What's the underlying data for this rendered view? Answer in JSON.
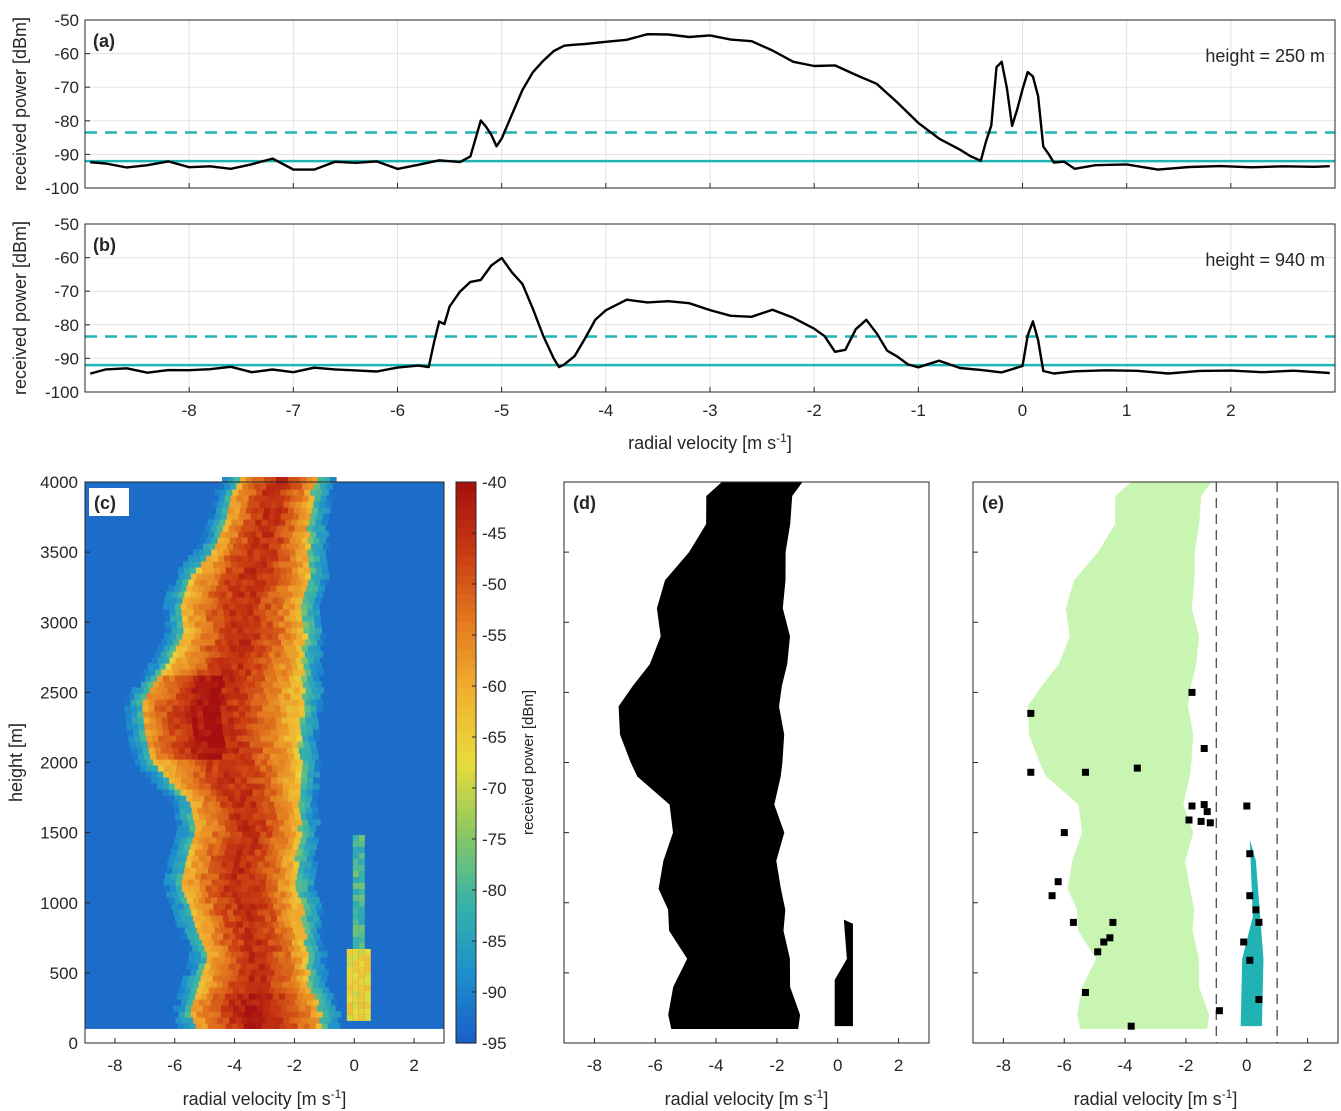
{
  "chart_data": [
    {
      "id": "a",
      "type": "line",
      "panel_label": "(a)",
      "annotation": "height = 250 m",
      "xlabel": "radial velocity [m s",
      "xlabel_sup": "-1",
      "xlabel_tail": "]",
      "ylabel": "received power [dBm]",
      "xlim": [
        -9,
        3
      ],
      "ylim": [
        -100,
        -50
      ],
      "xticks": [
        -8,
        -7,
        -6,
        -5,
        -4,
        -3,
        -2,
        -1,
        0,
        1,
        2
      ],
      "yticks": [
        -50,
        -60,
        -70,
        -80,
        -90,
        -100
      ],
      "show_xticklabels": false,
      "show_xlabel": false,
      "grid": true,
      "threshold_dashed": -83.5,
      "threshold_solid": -92,
      "x": [
        -8.95,
        -8.8,
        -8.6,
        -8.4,
        -8.2,
        -8.0,
        -7.8,
        -7.6,
        -7.4,
        -7.2,
        -7.0,
        -6.8,
        -6.6,
        -6.4,
        -6.2,
        -6.0,
        -5.8,
        -5.6,
        -5.4,
        -5.3,
        -5.2,
        -5.15,
        -5.1,
        -5.05,
        -5.0,
        -4.9,
        -4.8,
        -4.7,
        -4.6,
        -4.5,
        -4.4,
        -4.3,
        -4.2,
        -4.0,
        -3.8,
        -3.6,
        -3.4,
        -3.2,
        -3.0,
        -2.8,
        -2.6,
        -2.4,
        -2.2,
        -2.0,
        -1.8,
        -1.6,
        -1.4,
        -1.2,
        -1.0,
        -0.8,
        -0.6,
        -0.5,
        -0.4,
        -0.35,
        -0.3,
        -0.25,
        -0.2,
        -0.15,
        -0.1,
        -0.05,
        0.0,
        0.05,
        0.1,
        0.15,
        0.2,
        0.25,
        0.3,
        0.4,
        0.5,
        0.7,
        1.0,
        1.3,
        1.6,
        1.9,
        2.2,
        2.5,
        2.8,
        2.95
      ],
      "values": [
        -93,
        -92,
        -94,
        -93,
        -92,
        -94,
        -93,
        -94,
        -93,
        -92,
        -95,
        -94,
        -93,
        -93,
        -92,
        -95,
        -93,
        -92,
        -92,
        -91,
        -80,
        -82,
        -84,
        -87,
        -85,
        -78,
        -70,
        -65,
        -62,
        -60,
        -58,
        -57,
        -57,
        -56,
        -56,
        -55,
        -55,
        -55,
        -55,
        -56,
        -57,
        -59,
        -62,
        -64,
        -64,
        -66,
        -69,
        -74,
        -80,
        -85,
        -88,
        -91,
        -92,
        -86,
        -82,
        -64,
        -62,
        -70,
        -81,
        -76,
        -70,
        -66,
        -66,
        -72,
        -87,
        -90,
        -92,
        -92,
        -94,
        -93,
        -93,
        -94,
        -93,
        -93,
        -94,
        -93,
        -94,
        -93
      ]
    },
    {
      "id": "b",
      "type": "line",
      "panel_label": "(b)",
      "annotation": "height = 940 m",
      "xlabel": "radial velocity [m s",
      "xlabel_sup": "-1",
      "xlabel_tail": "]",
      "ylabel": "received power [dBm]",
      "xlim": [
        -9,
        3
      ],
      "ylim": [
        -100,
        -50
      ],
      "xticks": [
        -8,
        -7,
        -6,
        -5,
        -4,
        -3,
        -2,
        -1,
        0,
        1,
        2
      ],
      "yticks": [
        -50,
        -60,
        -70,
        -80,
        -90,
        -100
      ],
      "show_xticklabels": true,
      "show_xlabel": true,
      "grid": true,
      "threshold_dashed": -83.5,
      "threshold_solid": -92,
      "x": [
        -8.95,
        -8.8,
        -8.6,
        -8.4,
        -8.2,
        -8.0,
        -7.8,
        -7.6,
        -7.4,
        -7.2,
        -7.0,
        -6.8,
        -6.6,
        -6.4,
        -6.2,
        -6.0,
        -5.8,
        -5.7,
        -5.65,
        -5.6,
        -5.55,
        -5.5,
        -5.4,
        -5.3,
        -5.2,
        -5.1,
        -5.0,
        -4.9,
        -4.8,
        -4.7,
        -4.6,
        -4.5,
        -4.45,
        -4.4,
        -4.3,
        -4.2,
        -4.1,
        -4.0,
        -3.8,
        -3.6,
        -3.4,
        -3.2,
        -3.0,
        -2.8,
        -2.6,
        -2.4,
        -2.2,
        -2.0,
        -1.9,
        -1.8,
        -1.7,
        -1.6,
        -1.5,
        -1.4,
        -1.3,
        -1.2,
        -1.1,
        -1.0,
        -0.8,
        -0.6,
        -0.4,
        -0.2,
        0.0,
        0.05,
        0.1,
        0.15,
        0.2,
        0.3,
        0.5,
        0.8,
        1.1,
        1.4,
        1.7,
        2.0,
        2.3,
        2.6,
        2.95
      ],
      "values": [
        -94,
        -93,
        -93,
        -95,
        -94,
        -93,
        -94,
        -93,
        -94,
        -94,
        -94,
        -93,
        -93,
        -94,
        -94,
        -93,
        -92,
        -92,
        -85,
        -79,
        -79,
        -74,
        -70,
        -68,
        -67,
        -62,
        -60,
        -64,
        -68,
        -76,
        -84,
        -90,
        -93,
        -92,
        -90,
        -84,
        -78,
        -76,
        -73,
        -73,
        -73,
        -73,
        -75,
        -77,
        -77,
        -76,
        -78,
        -81,
        -84,
        -88,
        -87,
        -81,
        -78,
        -82,
        -87,
        -90,
        -91,
        -92,
        -90,
        -93,
        -93,
        -94,
        -92,
        -83,
        -79,
        -84,
        -93,
        -94,
        -94,
        -93,
        -94,
        -94,
        -93,
        -94,
        -94,
        -93,
        -94
      ]
    },
    {
      "id": "c",
      "type": "heatmap",
      "panel_label": "(c)",
      "xlabel": "radial velocity [m s",
      "xlabel_sup": "-1",
      "xlabel_tail": "]",
      "ylabel": "height [m]",
      "xlim": [
        -9,
        3
      ],
      "ylim": [
        0,
        4000
      ],
      "xticks": [
        -8,
        -6,
        -4,
        -2,
        0,
        2
      ],
      "yticks": [
        0,
        500,
        1000,
        1500,
        2000,
        2500,
        3000,
        3500,
        4000
      ],
      "colorbar_label": "received power [dBm]",
      "colorbar_ticks": [
        -40,
        -45,
        -50,
        -55,
        -60,
        -65,
        -70,
        -75,
        -80,
        -85,
        -90,
        -95
      ],
      "clim": [
        -95,
        -40
      ],
      "colormap": [
        "#1a5fc8",
        "#1e8fcd",
        "#37b3a8",
        "#8cc860",
        "#e8dc3a",
        "#f0b030",
        "#e37a1f",
        "#c83a12",
        "#a50f0f"
      ],
      "background_dBm": -93,
      "min_height": 100
    },
    {
      "id": "d",
      "type": "mask",
      "panel_label": "(d)",
      "xlabel": "radial velocity [m s",
      "xlabel_sup": "-1",
      "xlabel_tail": "]",
      "xlim": [
        -9,
        3
      ],
      "ylim": [
        0,
        4000
      ],
      "xticks": [
        -8,
        -6,
        -4,
        -2,
        0,
        2
      ],
      "mask_color": "#000000"
    },
    {
      "id": "e",
      "type": "scatter",
      "panel_label": "(e)",
      "xlabel": "radial velocity [m s",
      "xlabel_sup": "-1",
      "xlabel_tail": "]",
      "xlim": [
        -9,
        3
      ],
      "ylim": [
        0,
        4000
      ],
      "xticks": [
        -8,
        -6,
        -4,
        -2,
        0,
        2
      ],
      "boundaries": [
        -1,
        1
      ],
      "main_color": "#c9f5b3",
      "secondary_color": "#21b3b4",
      "marker_color": "#000000",
      "points": [
        {
          "x": -7.1,
          "y": 2350
        },
        {
          "x": -7.1,
          "y": 1930
        },
        {
          "x": -5.3,
          "y": 1930
        },
        {
          "x": -3.6,
          "y": 1960
        },
        {
          "x": -1.8,
          "y": 2500
        },
        {
          "x": -1.4,
          "y": 2100
        },
        {
          "x": -1.4,
          "y": 1700
        },
        {
          "x": -1.5,
          "y": 1580
        },
        {
          "x": -1.3,
          "y": 1650
        },
        {
          "x": -1.2,
          "y": 1570
        },
        {
          "x": -1.9,
          "y": 1590
        },
        {
          "x": -1.8,
          "y": 1690
        },
        {
          "x": 0.0,
          "y": 1690
        },
        {
          "x": -6.0,
          "y": 1500
        },
        {
          "x": -6.2,
          "y": 1150
        },
        {
          "x": -6.4,
          "y": 1050
        },
        {
          "x": -5.7,
          "y": 860
        },
        {
          "x": -4.4,
          "y": 860
        },
        {
          "x": -4.5,
          "y": 750
        },
        {
          "x": -4.7,
          "y": 720
        },
        {
          "x": -4.9,
          "y": 650
        },
        {
          "x": -5.3,
          "y": 360
        },
        {
          "x": -3.8,
          "y": 120
        },
        {
          "x": -0.9,
          "y": 230
        },
        {
          "x": 0.4,
          "y": 310
        },
        {
          "x": 0.4,
          "y": 860
        },
        {
          "x": 0.3,
          "y": 950
        },
        {
          "x": 0.1,
          "y": 590
        },
        {
          "x": -0.1,
          "y": 720
        },
        {
          "x": 0.1,
          "y": 1350
        },
        {
          "x": 0.1,
          "y": 1050
        }
      ]
    }
  ]
}
